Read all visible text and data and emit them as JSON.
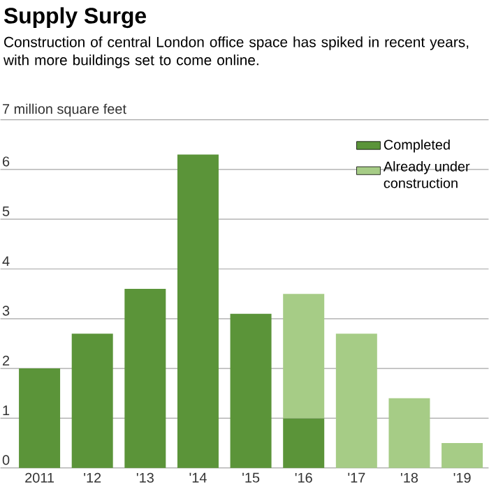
{
  "chart_data": {
    "type": "bar",
    "stacked": true,
    "title": "Supply Surge",
    "subtitle": "Construction of central London office space has spiked in recent years, with more buildings set to come online.",
    "categories": [
      "2011",
      "'12",
      "'13",
      "'14",
      "'15",
      "'16",
      "'17",
      "'18",
      "'19"
    ],
    "series": [
      {
        "name": "Completed",
        "color": "#5b9439",
        "values": [
          2.0,
          2.7,
          3.6,
          6.3,
          3.1,
          1.0,
          null,
          null,
          null
        ]
      },
      {
        "name": "Already under construction",
        "color": "#a6cc86",
        "values": [
          null,
          null,
          null,
          null,
          null,
          2.5,
          2.7,
          1.4,
          0.5
        ]
      }
    ],
    "ylim": [
      0,
      7
    ],
    "yticks": [
      0,
      1,
      2,
      3,
      4,
      5,
      6,
      {
        "value": 7,
        "label": "7 million square feet"
      }
    ],
    "grid": "y",
    "legend": "top right"
  }
}
